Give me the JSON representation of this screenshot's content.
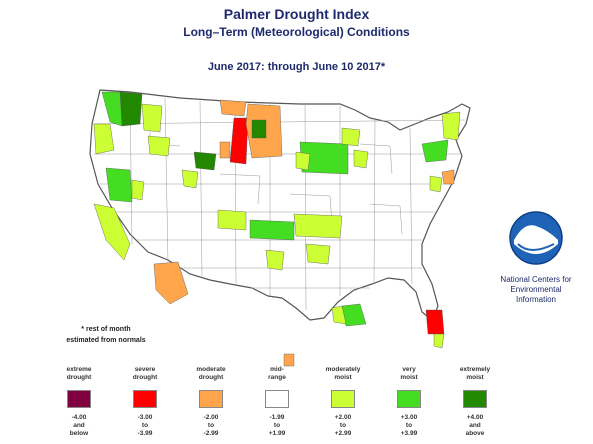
{
  "header": {
    "title": "Palmer Drought Index",
    "subtitle": "Long–Term (Meteorological) Conditions",
    "period": "June 2017: through June 10 2017*"
  },
  "note": {
    "line1": "* rest of month",
    "line2": "estimated from normals"
  },
  "logo": {
    "icon": "noaa-logo-icon",
    "line1": "National Centers for",
    "line2": "Environmental",
    "line3": "Information"
  },
  "legend": {
    "items": [
      {
        "l1": "extreme",
        "l2": "drought",
        "color": "#800040",
        "r1": "-4.00",
        "r2": "and",
        "r3": "below"
      },
      {
        "l1": "severe",
        "l2": "drought",
        "color": "#ff0000",
        "r1": "-3.00",
        "r2": "to",
        "r3": "-3.99"
      },
      {
        "l1": "moderate",
        "l2": "drought",
        "color": "#ffa64d",
        "r1": "-2.00",
        "r2": "to",
        "r3": "-2.99"
      },
      {
        "l1": "mid-",
        "l2": "range",
        "color": "#ffffff",
        "r1": "-1.99",
        "r2": "to",
        "r3": "+1.99"
      },
      {
        "l1": "moderately",
        "l2": "moist",
        "color": "#ccff33",
        "r1": "+2.00",
        "r2": "to",
        "r3": "+2.99"
      },
      {
        "l1": "very",
        "l2": "moist",
        "color": "#44dd22",
        "r1": "+3.00",
        "r2": "to",
        "r3": "+3.99"
      },
      {
        "l1": "extremely",
        "l2": "moist",
        "color": "#228800",
        "r1": "+4.00",
        "r2": "and",
        "r3": "above"
      }
    ]
  },
  "map": {
    "colors": {
      "extreme": "#800040",
      "severe": "#ff0000",
      "moderate": "#ffa64d",
      "midrange": "#ffffff",
      "mod_moist": "#ccff33",
      "very_moist": "#44dd22",
      "ext_moist": "#228800"
    }
  }
}
